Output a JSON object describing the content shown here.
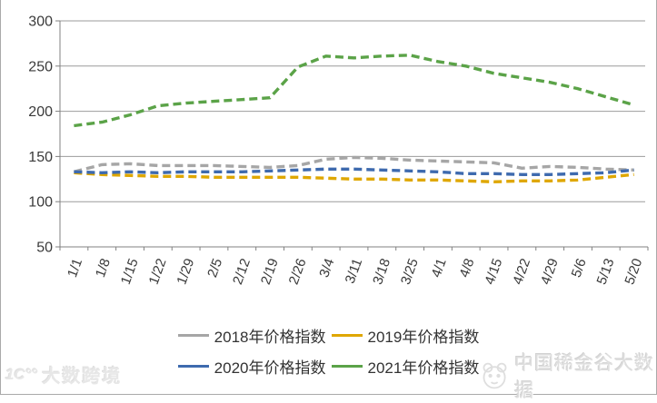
{
  "watermark_left": {
    "logo_icon": "dashu-logo",
    "text": "大数跨境"
  },
  "watermark_right": {
    "logo_icon": "panda-logo",
    "text": "中国稀金谷大数据"
  },
  "chart_data": {
    "type": "line",
    "title": "",
    "xlabel": "",
    "ylabel": "",
    "ylim": [
      50,
      300
    ],
    "y_ticks": [
      300,
      250,
      200,
      150,
      100,
      50
    ],
    "grid": true,
    "line_style": "dashed",
    "legend_position": "bottom",
    "x_labels": [
      "1/1",
      "1/8",
      "1/15",
      "1/22",
      "1/29",
      "2/5",
      "2/12",
      "2/19",
      "2/26",
      "3/4",
      "3/11",
      "3/18",
      "3/25",
      "4/1",
      "4/8",
      "4/15",
      "4/22",
      "4/29",
      "5/6",
      "5/13",
      "5/20"
    ],
    "series": [
      {
        "name": "2018年价格指数",
        "color": "#A6A6A6",
        "values": [
          133,
          141,
          142,
          140,
          140,
          140,
          139,
          138,
          140,
          147,
          149,
          148,
          146,
          145,
          144,
          143,
          137,
          139,
          138,
          136,
          135
        ]
      },
      {
        "name": "2019年价格指数",
        "color": "#DFA700",
        "values": [
          132,
          130,
          129,
          128,
          128,
          127,
          127,
          127,
          127,
          126,
          125,
          125,
          124,
          124,
          123,
          122,
          123,
          123,
          124,
          127,
          130
        ]
      },
      {
        "name": "2020年价格指数",
        "color": "#3E6AAE",
        "values": [
          133,
          132,
          133,
          132,
          133,
          133,
          133,
          134,
          135,
          136,
          136,
          135,
          134,
          133,
          131,
          131,
          130,
          130,
          131,
          132,
          135
        ]
      },
      {
        "name": "2021年价格指数",
        "color": "#5BA348",
        "values": [
          184,
          188,
          196,
          206,
          209,
          211,
          213,
          215,
          249,
          261,
          259,
          261,
          262,
          255,
          250,
          242,
          237,
          232,
          225,
          216,
          207
        ]
      }
    ],
    "legend_rows": [
      [
        0,
        1
      ],
      [
        2,
        3
      ]
    ]
  }
}
